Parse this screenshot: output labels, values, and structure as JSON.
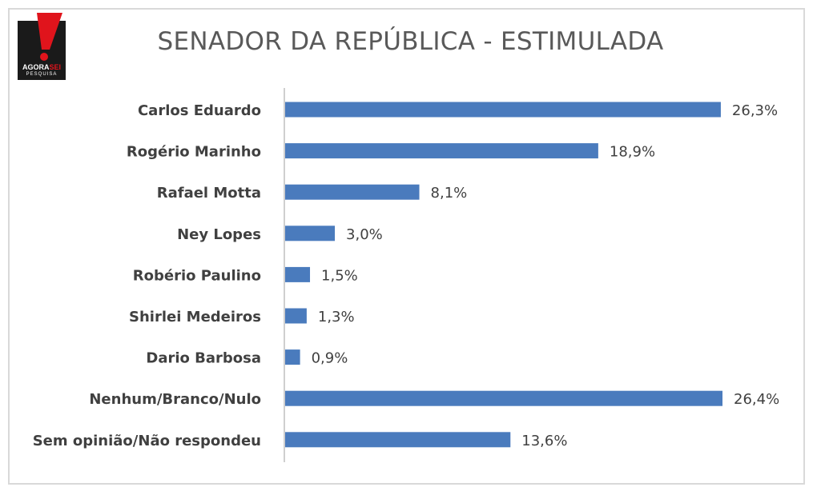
{
  "header": {
    "title": "SENADOR DA REPÚBLICA - ESTIMULADA"
  },
  "logo": {
    "line1_a": "AGORA",
    "line1_b": "SEI",
    "line2": "PESQUISA"
  },
  "colors": {
    "bar": "#4a7bbd",
    "label": "#404040",
    "value_label": "#404040",
    "logo_red": "#e0141c",
    "logo_dark": "#1a1a1a",
    "axis": "#bfbfbf"
  },
  "chart_data": {
    "type": "bar",
    "orientation": "horizontal",
    "title": "SENADOR DA REPÚBLICA - ESTIMULADA",
    "categories": [
      "Carlos Eduardo",
      "Rogério Marinho",
      "Rafael Motta",
      "Ney Lopes",
      "Robério Paulino",
      "Shirlei Medeiros",
      "Dario Barbosa",
      "Nenhum/Branco/Nulo",
      "Sem opinião/Não respondeu"
    ],
    "values": [
      26.3,
      18.9,
      8.1,
      3.0,
      1.5,
      1.3,
      0.9,
      26.4,
      13.6
    ],
    "value_labels": [
      "26,3%",
      "18,9%",
      "8,1%",
      "3,0%",
      "1,5%",
      "1,3%",
      "0,9%",
      "26,4%",
      "13,6%"
    ],
    "xlim": [
      0,
      26.4
    ],
    "grid": false,
    "legend": "none"
  }
}
